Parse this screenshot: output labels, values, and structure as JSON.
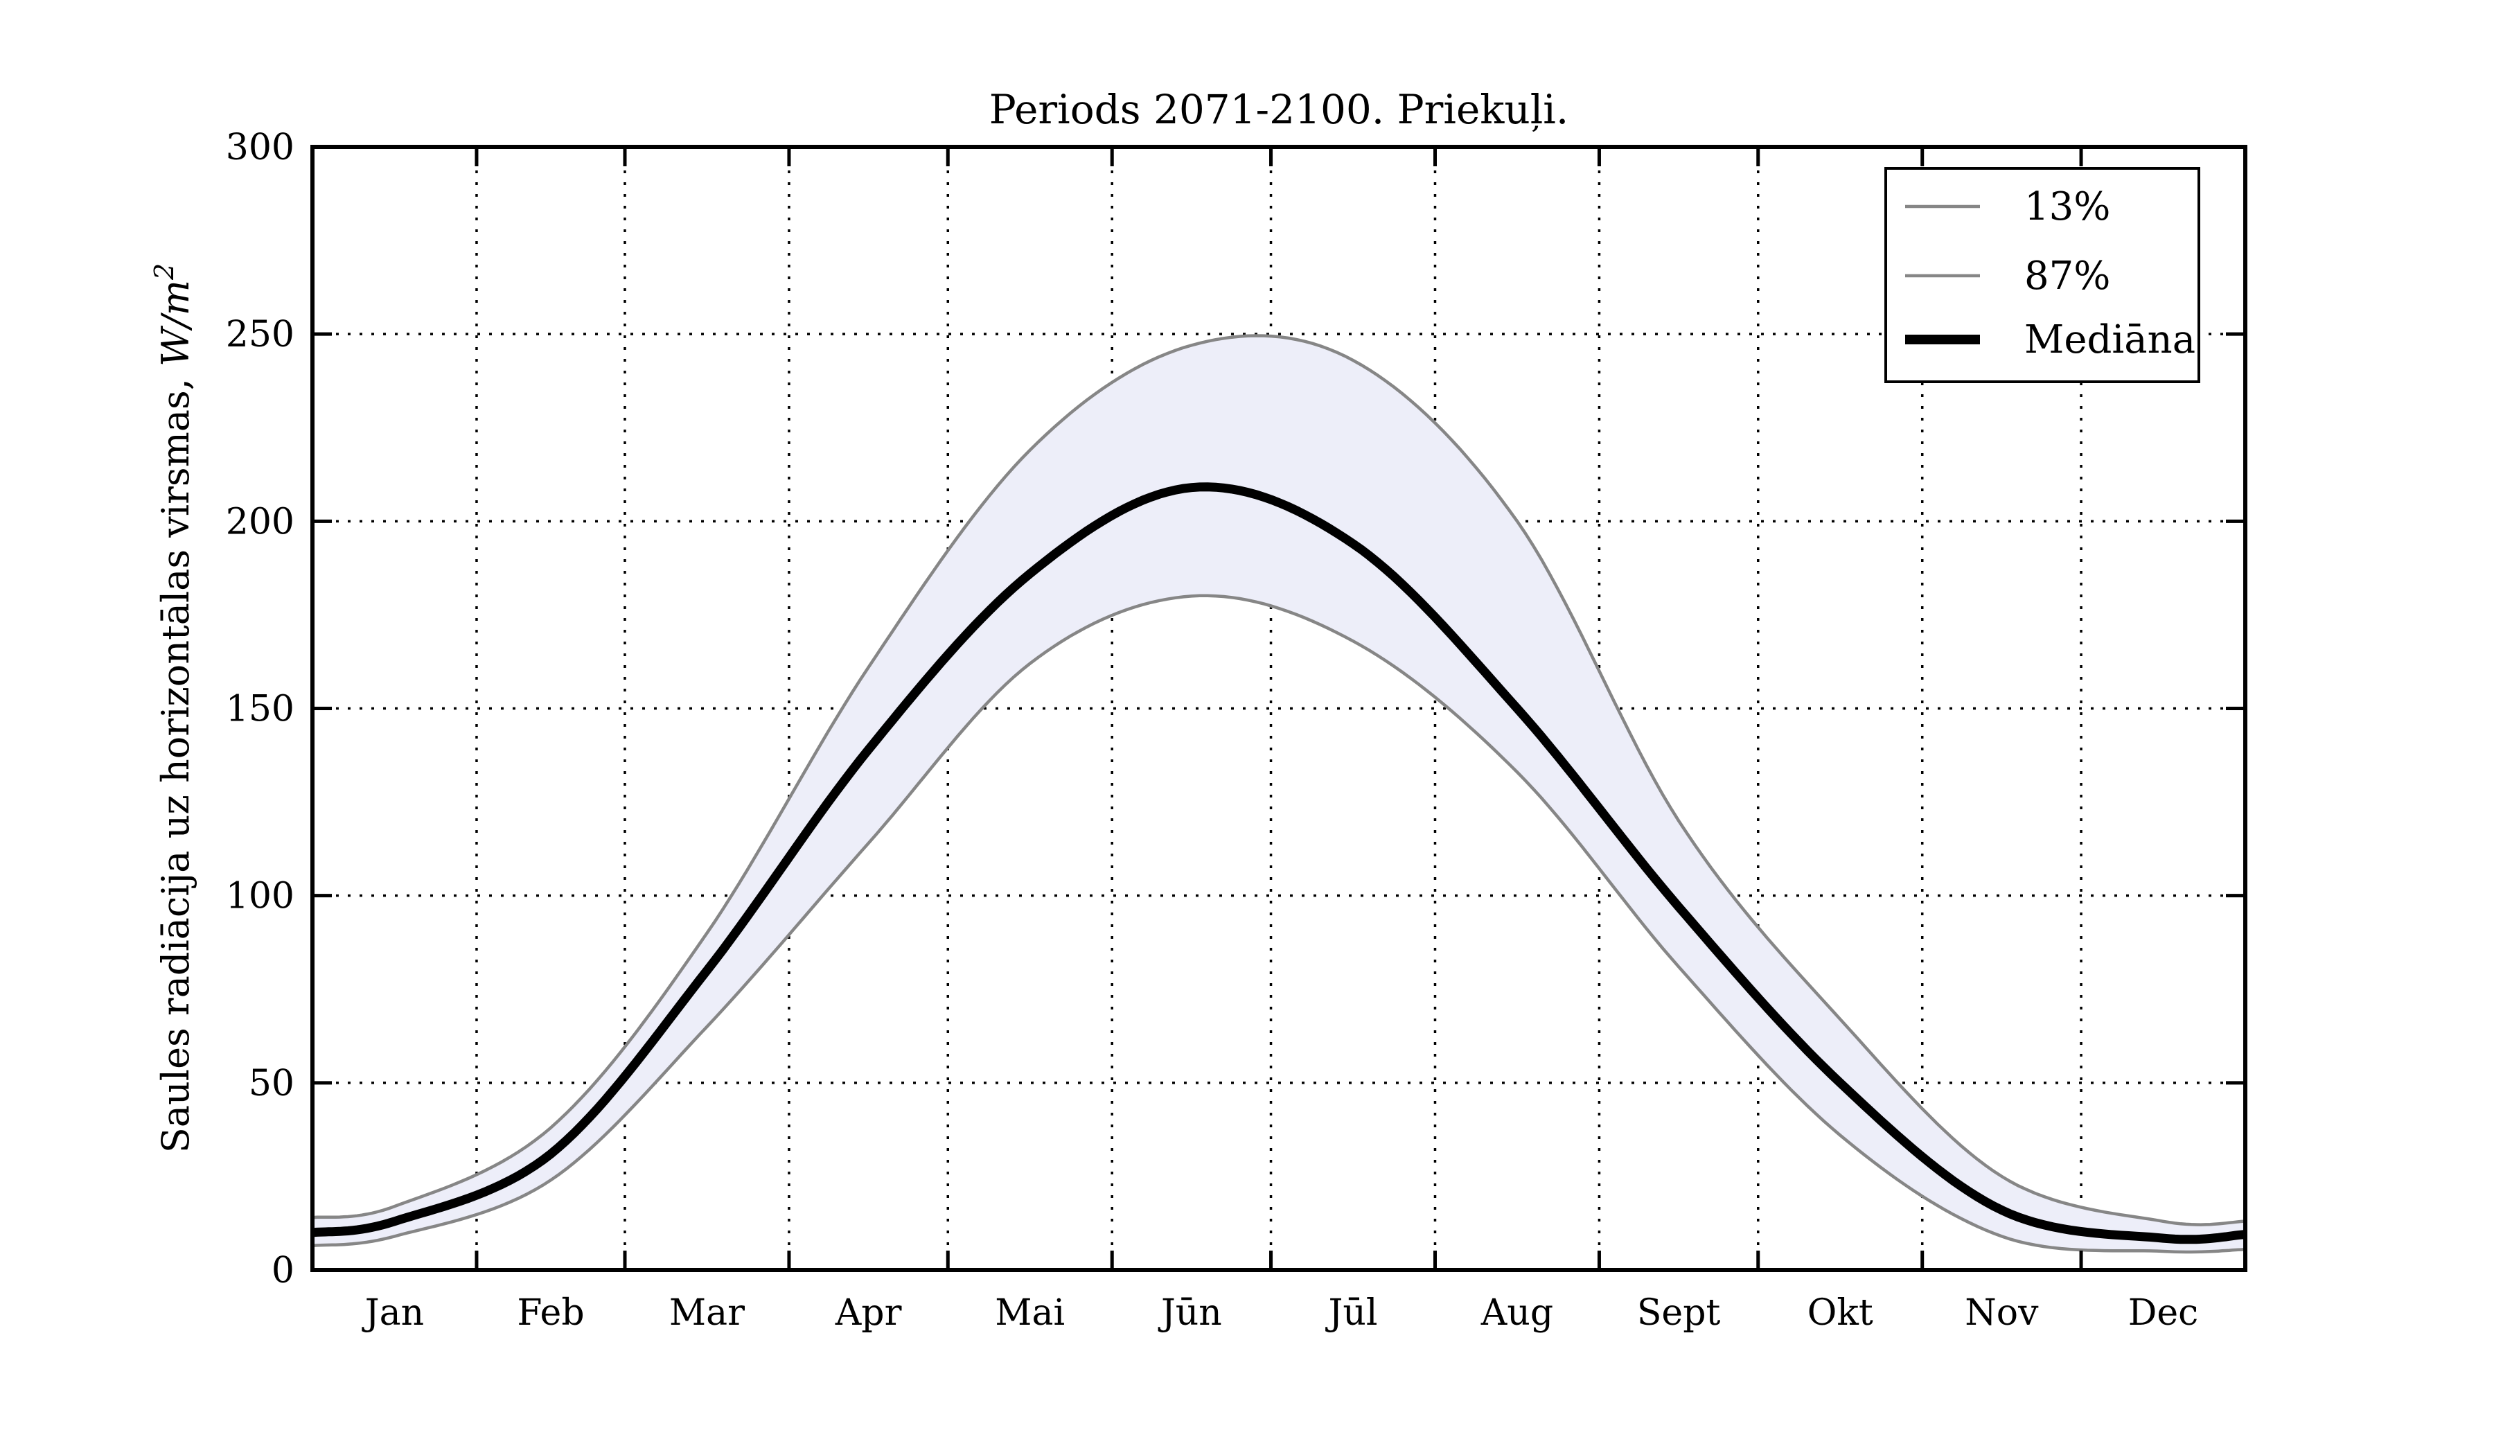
{
  "title": "Periods 2071-2100. Priekuļi.",
  "ylabel": {
    "text": "Saules radiācija uz horizontālas virsmas, ",
    "math": "W/m",
    "exponent": "2"
  },
  "legend": {
    "position": "upper right",
    "items": [
      {
        "label": "13%",
        "style": "thin-gray"
      },
      {
        "label": "87%",
        "style": "thin-gray"
      },
      {
        "label": "Mediāna",
        "style": "thick-black"
      }
    ]
  },
  "colors": {
    "background": "#ffffff",
    "band_fill": "#edeef9",
    "percentile_line": "#868686",
    "median_line": "#000000",
    "grid_dots": "#000000",
    "spine": "#000000"
  },
  "chart_data": {
    "type": "line",
    "title": "Periods 2071-2100. Priekuļi.",
    "xlabel": "",
    "ylabel": "Saules radiācija uz horizontālas virsmas, W/m²",
    "ylim": [
      0,
      300
    ],
    "yticks": [
      0,
      50,
      100,
      150,
      200,
      250,
      300
    ],
    "grid": true,
    "legend_position": "upper right",
    "x_axis": "day of year, Jan 1 – Dec 31 (365 days), curves plotted through mid-month points",
    "categories": [
      "Jan",
      "Feb",
      "Mar",
      "Apr",
      "Mai",
      "Jūn",
      "Jūl",
      "Aug",
      "Sept",
      "Okt",
      "Nov",
      "Dec"
    ],
    "month_boundary_days": [
      0,
      31,
      59,
      90,
      120,
      151,
      181,
      212,
      243,
      273,
      304,
      334,
      365
    ],
    "month_mid_days": [
      15.5,
      45,
      74.5,
      105,
      135.5,
      166,
      196.5,
      227.5,
      258,
      288.5,
      319,
      349.5
    ],
    "series": [
      {
        "name": "87%",
        "role": "upper-percentile",
        "values": [
          17,
          38,
          90,
          161,
          219,
          247,
          243,
          200,
          120,
          67,
          25,
          13
        ]
      },
      {
        "name": "Mediāna",
        "role": "median",
        "values": [
          13,
          31,
          80,
          139,
          186,
          209,
          194,
          150,
          97,
          50,
          16,
          8.5
        ]
      },
      {
        "name": "13%",
        "role": "lower-percentile",
        "values": [
          9,
          24,
          65,
          114,
          162,
          180,
          168,
          133,
          81,
          36,
          9,
          5
        ]
      }
    ],
    "year_edge_values": {
      "jan1": {
        "87%": 14,
        "Mediāna": 10,
        "13%": 6.5
      },
      "dec31": {
        "87%": 13,
        "Mediāna": 9.5,
        "13%": 5.5
      }
    },
    "band": "area between 13% and 87% percentile curves is filled light lavender"
  }
}
